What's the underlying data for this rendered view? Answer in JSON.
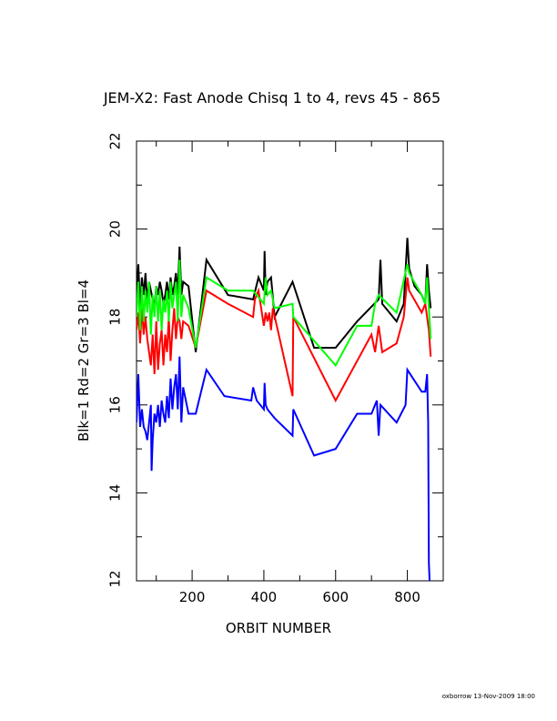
{
  "chart_data": {
    "type": "line",
    "title": "JEM-X2: Fast Anode Chisq 1 to 4, revs 45 - 865",
    "xlabel": "ORBIT NUMBER",
    "ylabel": "Blk=1 Rd=2 Gr=3 Bl=4",
    "xlim": [
      45,
      900
    ],
    "ylim": [
      12,
      22
    ],
    "xticks": [
      200,
      400,
      600,
      800
    ],
    "yticks": [
      14,
      16,
      18,
      20,
      22
    ],
    "xtick_labels": [
      "200",
      "400",
      "600",
      "800"
    ],
    "ytick_labels": [
      "14",
      "16",
      "18",
      "20",
      "22"
    ],
    "grid": false,
    "series": [
      {
        "color": "#000000",
        "x": [
          45,
          50,
          55,
          60,
          65,
          70,
          75,
          80,
          85,
          90,
          95,
          100,
          105,
          110,
          115,
          120,
          125,
          130,
          135,
          140,
          145,
          150,
          155,
          160,
          165,
          170,
          175,
          190,
          210,
          240,
          300,
          370,
          385,
          400,
          402,
          405,
          410,
          420,
          430,
          480,
          540,
          600,
          660,
          720,
          725,
          730,
          770,
          790,
          800,
          805,
          820,
          840,
          850,
          855,
          860,
          865
        ],
        "y": [
          18.4,
          19.2,
          18.2,
          18.9,
          18.5,
          19.0,
          18.3,
          18.8,
          18.6,
          18.4,
          18.2,
          18.7,
          18.5,
          18.8,
          18.6,
          18.3,
          18.5,
          18.8,
          18.4,
          18.9,
          18.5,
          18.7,
          19.0,
          18.5,
          19.6,
          18.5,
          18.8,
          18.7,
          17.2,
          19.3,
          18.5,
          18.4,
          18.9,
          18.6,
          19.5,
          18.5,
          18.8,
          18.9,
          18.0,
          18.8,
          17.3,
          17.3,
          17.9,
          18.4,
          19.3,
          18.3,
          17.9,
          18.3,
          19.8,
          19.1,
          18.7,
          18.5,
          18.3,
          19.2,
          18.6,
          18.2
        ]
      },
      {
        "color": "#ff0000",
        "x": [
          45,
          50,
          55,
          60,
          65,
          70,
          75,
          80,
          85,
          90,
          95,
          100,
          105,
          110,
          115,
          120,
          125,
          130,
          135,
          140,
          145,
          150,
          155,
          160,
          165,
          170,
          175,
          190,
          210,
          240,
          300,
          370,
          375,
          385,
          400,
          405,
          410,
          415,
          420,
          425,
          480,
          482,
          600,
          700,
          710,
          720,
          730,
          770,
          790,
          800,
          805,
          840,
          850,
          860,
          865
        ],
        "y": [
          17.7,
          18.1,
          17.4,
          18.2,
          17.6,
          18.0,
          17.5,
          17.2,
          16.9,
          17.6,
          16.7,
          17.9,
          16.8,
          17.4,
          17.7,
          16.9,
          17.6,
          17.2,
          18.0,
          17.0,
          17.7,
          18.2,
          17.5,
          18.0,
          17.9,
          17.5,
          17.9,
          17.8,
          17.3,
          18.6,
          18.3,
          18.0,
          18.4,
          18.6,
          17.8,
          18.1,
          17.9,
          18.1,
          17.7,
          18.2,
          16.2,
          18.0,
          16.1,
          17.6,
          17.2,
          17.8,
          17.2,
          17.4,
          18.0,
          18.9,
          18.6,
          18.1,
          18.3,
          17.7,
          17.1
        ]
      },
      {
        "color": "#00ff00",
        "x": [
          45,
          50,
          55,
          60,
          65,
          70,
          75,
          80,
          85,
          90,
          95,
          100,
          105,
          110,
          115,
          120,
          125,
          130,
          135,
          140,
          145,
          150,
          155,
          160,
          165,
          170,
          175,
          190,
          210,
          240,
          300,
          370,
          380,
          400,
          405,
          410,
          420,
          430,
          480,
          482,
          600,
          660,
          700,
          710,
          715,
          720,
          770,
          800,
          805,
          840,
          850,
          855,
          860,
          865
        ],
        "y": [
          18.0,
          18.8,
          17.7,
          18.7,
          17.9,
          18.6,
          18.1,
          18.8,
          17.6,
          18.5,
          18.0,
          18.7,
          17.9,
          18.6,
          17.7,
          18.4,
          18.1,
          18.6,
          17.9,
          18.8,
          18.2,
          18.5,
          18.8,
          17.9,
          19.3,
          18.0,
          18.5,
          18.2,
          17.3,
          18.9,
          18.6,
          18.6,
          18.5,
          18.3,
          18.9,
          18.5,
          18.6,
          18.2,
          18.3,
          18.0,
          16.9,
          17.8,
          17.8,
          18.3,
          18.4,
          18.5,
          18.1,
          19.2,
          19.0,
          18.5,
          18.3,
          18.9,
          18.2,
          17.5
        ]
      },
      {
        "color": "#0000ff",
        "x": [
          45,
          50,
          55,
          60,
          65,
          70,
          75,
          80,
          85,
          87,
          90,
          95,
          100,
          105,
          110,
          115,
          120,
          125,
          130,
          135,
          140,
          145,
          150,
          155,
          160,
          165,
          170,
          175,
          190,
          210,
          240,
          290,
          365,
          370,
          380,
          400,
          402,
          405,
          410,
          420,
          430,
          480,
          482,
          540,
          600,
          660,
          700,
          710,
          715,
          720,
          725,
          770,
          795,
          800,
          840,
          850,
          855,
          858,
          860,
          862
        ],
        "y": [
          15.6,
          16.7,
          15.5,
          15.9,
          15.5,
          15.4,
          15.2,
          15.6,
          16.0,
          14.5,
          15.2,
          15.8,
          15.6,
          16.0,
          15.5,
          16.1,
          15.8,
          15.6,
          16.2,
          15.7,
          16.6,
          15.9,
          16.4,
          16.7,
          15.9,
          17.1,
          15.6,
          16.4,
          15.8,
          15.8,
          16.8,
          16.2,
          16.1,
          16.4,
          16.1,
          15.9,
          16.5,
          16.0,
          15.9,
          15.8,
          15.7,
          15.3,
          15.9,
          14.85,
          15.0,
          15.8,
          15.8,
          16.0,
          16.1,
          15.3,
          16.0,
          15.6,
          16.0,
          16.8,
          16.3,
          16.3,
          16.7,
          15.6,
          12.4,
          12.0
        ]
      }
    ]
  },
  "footer": {
    "stamp": "oxborrow 13-Nov-2009 18:00"
  }
}
